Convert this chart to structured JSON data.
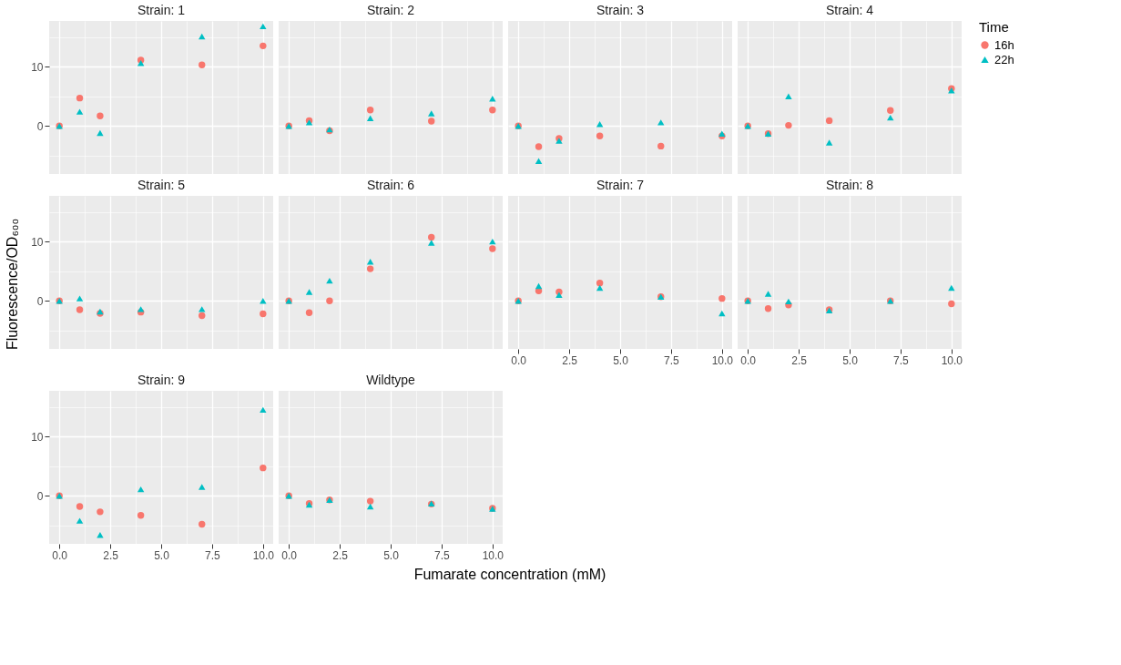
{
  "chart_data": [
    {
      "type": "scatter",
      "title": "Strain: 1",
      "legend_title": "Time",
      "legend": "right",
      "grid": true,
      "tick_labels": "y",
      "x": [
        0,
        1,
        2,
        4,
        7,
        10
      ],
      "xlim": [
        -0.5,
        10.5
      ],
      "ylim": [
        -8.1,
        17.7
      ],
      "xticks": [
        {
          "value": 0,
          "label": "0.0"
        },
        {
          "value": 1.25,
          "label": null
        },
        {
          "value": 2.5,
          "label": "2.5"
        },
        {
          "value": 3.75,
          "label": null
        },
        {
          "value": 5,
          "label": "5.0"
        },
        {
          "value": 6.25,
          "label": null
        },
        {
          "value": 7.5,
          "label": "7.5"
        },
        {
          "value": 8.75,
          "label": null
        },
        {
          "value": 10,
          "label": "10.0"
        }
      ],
      "yticks": [
        {
          "value": -5,
          "label": null
        },
        0,
        {
          "value": 5,
          "label": null
        },
        10,
        {
          "value": 15,
          "label": null
        }
      ],
      "series": [
        {
          "name": "16h",
          "color": "#f8766d",
          "marker": "circle",
          "values": [
            0,
            4.7,
            1.7,
            11.1,
            10.3,
            13.5
          ]
        },
        {
          "name": "22h",
          "color": "#00bfc4",
          "marker": "triangle",
          "values": [
            0,
            2.4,
            -1.2,
            10.6,
            15.1,
            16.8
          ]
        }
      ]
    },
    {
      "type": "scatter",
      "title": "Strain: 2",
      "grid": true,
      "tick_labels": false,
      "x": [
        0,
        1,
        2,
        4,
        7,
        10
      ],
      "xlim": [
        -0.5,
        10.5
      ],
      "ylim": [
        -8.1,
        17.7
      ],
      "xticks": [
        {
          "value": 0,
          "label": "0.0"
        },
        {
          "value": 1.25,
          "label": null
        },
        {
          "value": 2.5,
          "label": "2.5"
        },
        {
          "value": 3.75,
          "label": null
        },
        {
          "value": 5,
          "label": "5.0"
        },
        {
          "value": 6.25,
          "label": null
        },
        {
          "value": 7.5,
          "label": "7.5"
        },
        {
          "value": 8.75,
          "label": null
        },
        {
          "value": 10,
          "label": "10.0"
        }
      ],
      "yticks": [
        {
          "value": -5,
          "label": null
        },
        0,
        {
          "value": 5,
          "label": null
        },
        10,
        {
          "value": 15,
          "label": null
        }
      ],
      "series": [
        {
          "name": "16h",
          "color": "#f8766d",
          "marker": "circle",
          "values": [
            0,
            0.9,
            -0.8,
            2.7,
            0.8,
            2.7
          ]
        },
        {
          "name": "22h",
          "color": "#00bfc4",
          "marker": "triangle",
          "values": [
            0,
            0.6,
            -0.6,
            1.3,
            2.1,
            4.6
          ]
        }
      ]
    },
    {
      "type": "scatter",
      "title": "Strain: 3",
      "grid": true,
      "tick_labels": false,
      "x": [
        0,
        1,
        2,
        4,
        7,
        10
      ],
      "xlim": [
        -0.5,
        10.5
      ],
      "ylim": [
        -8.1,
        17.7
      ],
      "xticks": [
        {
          "value": 0,
          "label": "0.0"
        },
        {
          "value": 1.25,
          "label": null
        },
        {
          "value": 2.5,
          "label": "2.5"
        },
        {
          "value": 3.75,
          "label": null
        },
        {
          "value": 5,
          "label": "5.0"
        },
        {
          "value": 6.25,
          "label": null
        },
        {
          "value": 7.5,
          "label": "7.5"
        },
        {
          "value": 8.75,
          "label": null
        },
        {
          "value": 10,
          "label": "10.0"
        }
      ],
      "yticks": [
        {
          "value": -5,
          "label": null
        },
        0,
        {
          "value": 5,
          "label": null
        },
        10,
        {
          "value": 15,
          "label": null
        }
      ],
      "series": [
        {
          "name": "16h",
          "color": "#f8766d",
          "marker": "circle",
          "values": [
            0,
            -3.5,
            -2.1,
            -1.7,
            -3.4,
            -1.7
          ]
        },
        {
          "name": "22h",
          "color": "#00bfc4",
          "marker": "triangle",
          "values": [
            0,
            -5.9,
            -2.5,
            0.3,
            0.6,
            -1.3
          ]
        }
      ]
    },
    {
      "type": "scatter",
      "title": "Strain: 4",
      "grid": true,
      "tick_labels": false,
      "x": [
        0,
        1,
        2,
        4,
        7,
        10
      ],
      "xlim": [
        -0.5,
        10.5
      ],
      "ylim": [
        -8.1,
        17.7
      ],
      "xticks": [
        {
          "value": 0,
          "label": "0.0"
        },
        {
          "value": 1.25,
          "label": null
        },
        {
          "value": 2.5,
          "label": "2.5"
        },
        {
          "value": 3.75,
          "label": null
        },
        {
          "value": 5,
          "label": "5.0"
        },
        {
          "value": 6.25,
          "label": null
        },
        {
          "value": 7.5,
          "label": "7.5"
        },
        {
          "value": 8.75,
          "label": null
        },
        {
          "value": 10,
          "label": "10.0"
        }
      ],
      "yticks": [
        {
          "value": -5,
          "label": null
        },
        0,
        {
          "value": 5,
          "label": null
        },
        10,
        {
          "value": 15,
          "label": null
        }
      ],
      "series": [
        {
          "name": "16h",
          "color": "#f8766d",
          "marker": "circle",
          "values": [
            0,
            -1.3,
            0.1,
            0.9,
            2.6,
            6.3
          ]
        },
        {
          "name": "22h",
          "color": "#00bfc4",
          "marker": "triangle",
          "values": [
            0,
            -1.3,
            5.0,
            -2.8,
            1.4,
            6.0
          ]
        }
      ]
    },
    {
      "type": "scatter",
      "title": "Strain: 5",
      "ylabel": "Fluorescence/OD₆₀₀",
      "grid": true,
      "tick_labels": "y",
      "x": [
        0,
        1,
        2,
        4,
        7,
        10
      ],
      "xlim": [
        -0.5,
        10.5
      ],
      "ylim": [
        -8.1,
        17.7
      ],
      "xticks": [
        {
          "value": 0,
          "label": "0.0"
        },
        {
          "value": 1.25,
          "label": null
        },
        {
          "value": 2.5,
          "label": "2.5"
        },
        {
          "value": 3.75,
          "label": null
        },
        {
          "value": 5,
          "label": "5.0"
        },
        {
          "value": 6.25,
          "label": null
        },
        {
          "value": 7.5,
          "label": "7.5"
        },
        {
          "value": 8.75,
          "label": null
        },
        {
          "value": 10,
          "label": "10.0"
        }
      ],
      "yticks": [
        {
          "value": -5,
          "label": null
        },
        0,
        {
          "value": 5,
          "label": null
        },
        10,
        {
          "value": 15,
          "label": null
        }
      ],
      "series": [
        {
          "name": "16h",
          "color": "#f8766d",
          "marker": "circle",
          "values": [
            0,
            -1.5,
            -2.1,
            -1.9,
            -2.5,
            -2.2
          ]
        },
        {
          "name": "22h",
          "color": "#00bfc4",
          "marker": "triangle",
          "values": [
            0,
            0.4,
            -1.8,
            -1.4,
            -1.4,
            0
          ]
        }
      ]
    },
    {
      "type": "scatter",
      "title": "Strain: 6",
      "grid": true,
      "tick_labels": false,
      "x": [
        0,
        1,
        2,
        4,
        7,
        10
      ],
      "xlim": [
        -0.5,
        10.5
      ],
      "ylim": [
        -8.1,
        17.7
      ],
      "xticks": [
        {
          "value": 0,
          "label": "0.0"
        },
        {
          "value": 1.25,
          "label": null
        },
        {
          "value": 2.5,
          "label": "2.5"
        },
        {
          "value": 3.75,
          "label": null
        },
        {
          "value": 5,
          "label": "5.0"
        },
        {
          "value": 6.25,
          "label": null
        },
        {
          "value": 7.5,
          "label": "7.5"
        },
        {
          "value": 8.75,
          "label": null
        },
        {
          "value": 10,
          "label": "10.0"
        }
      ],
      "yticks": [
        {
          "value": -5,
          "label": null
        },
        0,
        {
          "value": 5,
          "label": null
        },
        10,
        {
          "value": 15,
          "label": null
        }
      ],
      "series": [
        {
          "name": "16h",
          "color": "#f8766d",
          "marker": "circle",
          "values": [
            0,
            -2.0,
            0,
            5.4,
            10.7,
            8.8
          ]
        },
        {
          "name": "22h",
          "color": "#00bfc4",
          "marker": "triangle",
          "values": [
            0,
            1.5,
            3.4,
            6.6,
            9.8,
            10.0
          ]
        }
      ]
    },
    {
      "type": "scatter",
      "title": "Strain: 7",
      "grid": true,
      "tick_labels": "x",
      "x": [
        0,
        1,
        2,
        4,
        7,
        10
      ],
      "xlim": [
        -0.5,
        10.5
      ],
      "ylim": [
        -8.1,
        17.7
      ],
      "xticks": [
        {
          "value": 0,
          "label": "0.0"
        },
        {
          "value": 1.25,
          "label": null
        },
        {
          "value": 2.5,
          "label": "2.5"
        },
        {
          "value": 3.75,
          "label": null
        },
        {
          "value": 5,
          "label": "5.0"
        },
        {
          "value": 6.25,
          "label": null
        },
        {
          "value": 7.5,
          "label": "7.5"
        },
        {
          "value": 8.75,
          "label": null
        },
        {
          "value": 10,
          "label": "10.0"
        }
      ],
      "yticks": [
        {
          "value": -5,
          "label": null
        },
        0,
        {
          "value": 5,
          "label": null
        },
        10,
        {
          "value": 15,
          "label": null
        }
      ],
      "series": [
        {
          "name": "16h",
          "color": "#f8766d",
          "marker": "circle",
          "values": [
            0,
            1.7,
            1.5,
            3.0,
            0.7,
            0.4
          ]
        },
        {
          "name": "22h",
          "color": "#00bfc4",
          "marker": "triangle",
          "values": [
            0,
            2.5,
            1.0,
            2.2,
            0.7,
            -2.1
          ]
        }
      ]
    },
    {
      "type": "scatter",
      "title": "Strain: 8",
      "grid": true,
      "tick_labels": "x",
      "x": [
        0,
        1,
        2,
        4,
        7,
        10
      ],
      "xlim": [
        -0.5,
        10.5
      ],
      "ylim": [
        -8.1,
        17.7
      ],
      "xticks": [
        {
          "value": 0,
          "label": "0.0"
        },
        {
          "value": 1.25,
          "label": null
        },
        {
          "value": 2.5,
          "label": "2.5"
        },
        {
          "value": 3.75,
          "label": null
        },
        {
          "value": 5,
          "label": "5.0"
        },
        {
          "value": 6.25,
          "label": null
        },
        {
          "value": 7.5,
          "label": "7.5"
        },
        {
          "value": 8.75,
          "label": null
        },
        {
          "value": 10,
          "label": "10.0"
        }
      ],
      "yticks": [
        {
          "value": -5,
          "label": null
        },
        0,
        {
          "value": 5,
          "label": null
        },
        10,
        {
          "value": 15,
          "label": null
        }
      ],
      "series": [
        {
          "name": "16h",
          "color": "#f8766d",
          "marker": "circle",
          "values": [
            0,
            -1.3,
            -0.7,
            -1.5,
            0,
            -0.5
          ]
        },
        {
          "name": "22h",
          "color": "#00bfc4",
          "marker": "triangle",
          "values": [
            0,
            1.2,
            -0.1,
            -1.6,
            0,
            2.2
          ]
        }
      ]
    },
    {
      "type": "scatter",
      "title": "Strain: 9",
      "grid": true,
      "x": [
        0,
        1,
        2,
        4,
        7,
        10
      ],
      "xlim": [
        -0.5,
        10.5
      ],
      "ylim": [
        -8.1,
        17.7
      ],
      "xticks": [
        {
          "value": 0,
          "label": "0.0"
        },
        {
          "value": 1.25,
          "label": null
        },
        {
          "value": 2.5,
          "label": "2.5"
        },
        {
          "value": 3.75,
          "label": null
        },
        {
          "value": 5,
          "label": "5.0"
        },
        {
          "value": 6.25,
          "label": null
        },
        {
          "value": 7.5,
          "label": "7.5"
        },
        {
          "value": 8.75,
          "label": null
        },
        {
          "value": 10,
          "label": "10.0"
        }
      ],
      "yticks": [
        {
          "value": -5,
          "label": null
        },
        0,
        {
          "value": 5,
          "label": null
        },
        10,
        {
          "value": 15,
          "label": null
        }
      ],
      "series": [
        {
          "name": "16h",
          "color": "#f8766d",
          "marker": "circle",
          "values": [
            0,
            -1.8,
            -2.7,
            -3.3,
            -4.8,
            4.7
          ]
        },
        {
          "name": "22h",
          "color": "#00bfc4",
          "marker": "triangle",
          "values": [
            0,
            -4.2,
            -6.6,
            1.1,
            1.5,
            14.5
          ]
        }
      ]
    },
    {
      "type": "scatter",
      "title": "Wildtype",
      "xlabel": "Fumarate concentration (mM)",
      "grid": true,
      "tick_labels": "x",
      "x": [
        0,
        1,
        2,
        4,
        7,
        10
      ],
      "xlim": [
        -0.5,
        10.5
      ],
      "ylim": [
        -8.1,
        17.7
      ],
      "xticks": [
        {
          "value": 0,
          "label": "0.0"
        },
        {
          "value": 1.25,
          "label": null
        },
        {
          "value": 2.5,
          "label": "2.5"
        },
        {
          "value": 3.75,
          "label": null
        },
        {
          "value": 5,
          "label": "5.0"
        },
        {
          "value": 6.25,
          "label": null
        },
        {
          "value": 7.5,
          "label": "7.5"
        },
        {
          "value": 8.75,
          "label": null
        },
        {
          "value": 10,
          "label": "10.0"
        }
      ],
      "yticks": [
        {
          "value": -5,
          "label": null
        },
        0,
        {
          "value": 5,
          "label": null
        },
        10,
        {
          "value": 15,
          "label": null
        }
      ],
      "series": [
        {
          "name": "16h",
          "color": "#f8766d",
          "marker": "circle",
          "values": [
            0,
            -1.3,
            -0.7,
            -0.9,
            -1.4,
            -2.1
          ]
        },
        {
          "name": "22h",
          "color": "#00bfc4",
          "marker": "triangle",
          "values": [
            0,
            -1.5,
            -0.7,
            -1.8,
            -1.3,
            -2.2
          ]
        }
      ]
    }
  ]
}
